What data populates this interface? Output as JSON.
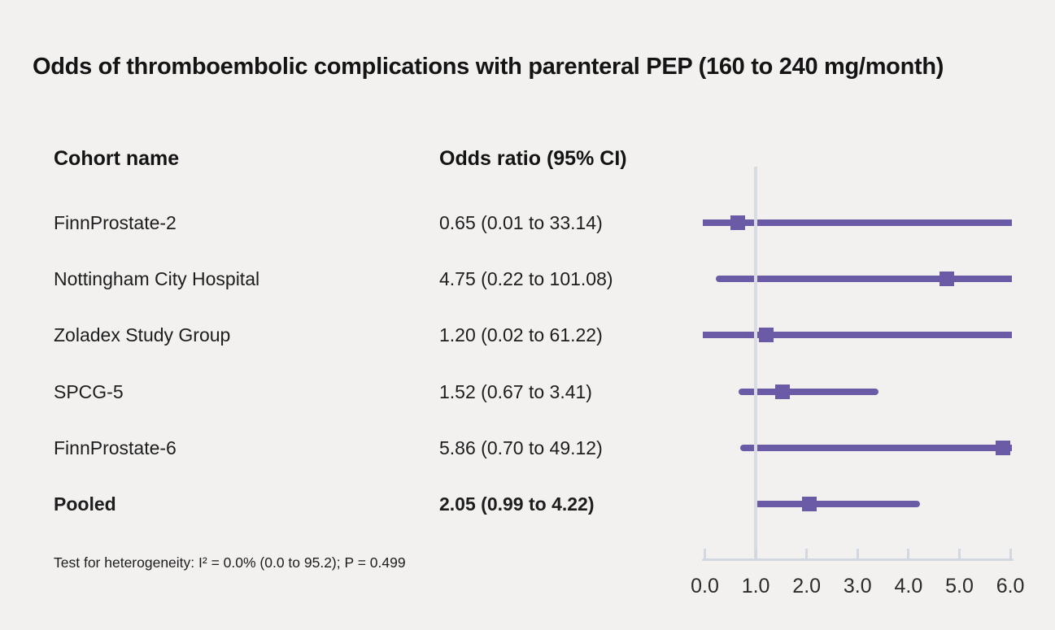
{
  "title": "Odds of thromboembolic complications with parenteral PEP (160 to 240 mg/month)",
  "table": {
    "cohort_header": "Cohort name",
    "or_header": "Odds ratio (95% CI)"
  },
  "footnote": "Test for heterogeneity: I² = 0.0% (0.0 to 95.2); P = 0.499",
  "colors": {
    "marker": "#6b5aa6",
    "ci_line": "#6b5aa6",
    "reference_line": "#d7dbe2",
    "axis": "#d3d8e0",
    "background": "#f2f1f0",
    "text": "#1d1d1d"
  },
  "chart_data": {
    "type": "scatter",
    "variant": "forest-plot",
    "title": "Odds of thromboembolic complications with parenteral PEP (160 to 240 mg/month)",
    "xlabel": "Odds ratio",
    "xlim": [
      0,
      6
    ],
    "x_ticks": [
      0,
      1,
      2,
      3,
      4,
      5,
      6
    ],
    "x_tick_labels": [
      "0.0",
      "1.0",
      "2.0",
      "3.0",
      "4.0",
      "5.0",
      "6.0"
    ],
    "reference_line_x": 1.0,
    "grid": false,
    "rows": [
      {
        "cohort": "FinnProstate-2",
        "label": "0.65 (0.01 to 33.14)",
        "or": 0.65,
        "ci_low": 0.01,
        "ci_high": 33.14,
        "pooled": false
      },
      {
        "cohort": "Nottingham City Hospital",
        "label": "4.75 (0.22 to 101.08)",
        "or": 4.75,
        "ci_low": 0.22,
        "ci_high": 101.08,
        "pooled": false
      },
      {
        "cohort": "Zoladex Study Group",
        "label": "1.20 (0.02 to 61.22)",
        "or": 1.2,
        "ci_low": 0.02,
        "ci_high": 61.22,
        "pooled": false
      },
      {
        "cohort": "SPCG-5",
        "label": "1.52 (0.67 to 3.41)",
        "or": 1.52,
        "ci_low": 0.67,
        "ci_high": 3.41,
        "pooled": false
      },
      {
        "cohort": "FinnProstate-6",
        "label": "5.86 (0.70 to 49.12)",
        "or": 5.86,
        "ci_low": 0.7,
        "ci_high": 49.12,
        "pooled": false
      },
      {
        "cohort": "Pooled",
        "label": "2.05 (0.99 to 4.22)",
        "or": 2.05,
        "ci_low": 0.99,
        "ci_high": 4.22,
        "pooled": true
      }
    ],
    "heterogeneity_note": "Test for heterogeneity: I² = 0.0% (0.0 to 95.2); P = 0.499"
  }
}
